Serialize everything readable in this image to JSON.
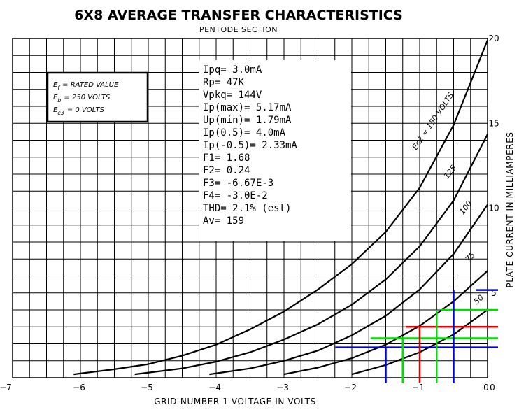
{
  "chart_data": {
    "type": "line",
    "title": "6X8 AVERAGE TRANSFER CHARACTERISTICS",
    "subtitle": "PENTODE SECTION",
    "xlabel": "GRID-NUMBER 1 VOLTAGE IN VOLTS",
    "ylabel": "PLATE CURRENT IN MILLIAMPERES",
    "xlim": [
      -7,
      0
    ],
    "ylim": [
      0,
      20
    ],
    "x_ticks": [
      "−7",
      "−6",
      "−5",
      "−4",
      "−3",
      "−2",
      "−1",
      "0"
    ],
    "y_ticks": [
      "5",
      "10",
      "15",
      "20"
    ],
    "grid": true,
    "conditions": [
      "E",
      "f",
      "= RATED VALUE",
      "E",
      "b",
      "= 250 VOLTS",
      "E",
      "c3",
      "= 0 VOLTS"
    ],
    "series": [
      {
        "name": "Ec2 = 150 VOLTS",
        "x": [
          -6.1,
          -5.5,
          -5,
          -4.5,
          -4,
          -3.5,
          -3,
          -2.5,
          -2,
          -1.5,
          -1,
          -0.5,
          0
        ],
        "y": [
          0.2,
          0.5,
          0.8,
          1.3,
          1.95,
          2.85,
          3.9,
          5.2,
          6.7,
          8.6,
          11.2,
          14.9,
          19.9
        ]
      },
      {
        "name": "125",
        "x": [
          -5.2,
          -4.5,
          -4,
          -3.5,
          -3,
          -2.5,
          -2,
          -1.5,
          -1,
          -0.5,
          0
        ],
        "y": [
          0.2,
          0.55,
          0.95,
          1.5,
          2.25,
          3.15,
          4.3,
          5.8,
          7.75,
          10.45,
          14.35
        ]
      },
      {
        "name": "100",
        "x": [
          -4.1,
          -3.5,
          -3,
          -2.5,
          -2,
          -1.5,
          -1,
          -0.5,
          0
        ],
        "y": [
          0.2,
          0.55,
          1.0,
          1.6,
          2.5,
          3.65,
          5.2,
          7.3,
          10.2
        ]
      },
      {
        "name": "75",
        "x": [
          -3.0,
          -2.5,
          -2,
          -1.5,
          -1,
          -0.5,
          0
        ],
        "y": [
          0.2,
          0.6,
          1.15,
          1.95,
          3.05,
          4.5,
          6.3
        ]
      },
      {
        "name": "50",
        "x": [
          -2.0,
          -1.5,
          -1,
          -0.5,
          0
        ],
        "y": [
          0.2,
          0.75,
          1.5,
          2.55,
          4.0
        ]
      }
    ],
    "series_labels": [
      "Ec2 = 150 VOLTS",
      "125",
      "100",
      "75",
      "50"
    ],
    "annotations": {
      "results": [
        "Ipq= 3.0mA",
        "Rp= 47K",
        "Vpkq= 144V",
        "Ip(max)= 5.17mA",
        "Up(min)= 1.79mA",
        "Ip(0.5)= 4.0mA",
        "Ip(-0.5)= 2.33mA",
        "F1= 1.68",
        "F2= 0.24",
        "F3= -6.67E-3",
        "F4= -3.0E-2",
        "THD= 2.1% (est)",
        "Av= 159"
      ],
      "operating_points": [
        {
          "x": -1.5,
          "y": 1.79,
          "color": "#0000dd"
        },
        {
          "x": -1.25,
          "y": 2.33,
          "color": "#00dd00"
        },
        {
          "x": -1.0,
          "y": 3.0,
          "color": "#dd0000"
        },
        {
          "x": -0.75,
          "y": 4.0,
          "color": "#00dd00"
        },
        {
          "x": -0.5,
          "y": 5.17,
          "color": "#0000dd"
        }
      ]
    },
    "colors": {
      "curves": "#000000",
      "grid": "#000000"
    }
  }
}
